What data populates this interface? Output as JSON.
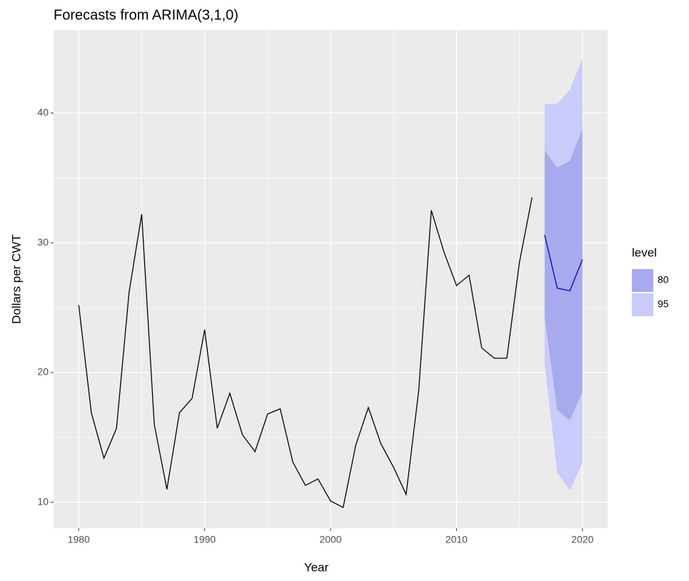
{
  "chart_data": {
    "type": "forecast",
    "title": "Forecasts from ARIMA(3,1,0)",
    "x_label": "Year",
    "y_label": "Dollars per CWT",
    "xlim": [
      1978,
      2022
    ],
    "ylim": [
      8,
      46.4
    ],
    "xticks": [
      1980,
      1990,
      2000,
      2010,
      2020
    ],
    "yticks": [
      10,
      20,
      30,
      40
    ],
    "grid": true,
    "line_color": "#000000",
    "x": [
      1980,
      1981,
      1982,
      1983,
      1984,
      1985,
      1986,
      1987,
      1988,
      1989,
      1990,
      1991,
      1992,
      1993,
      1994,
      1995,
      1996,
      1997,
      1998,
      1999,
      2000,
      2001,
      2002,
      2003,
      2004,
      2005,
      2006,
      2007,
      2008,
      2009,
      2010,
      2011,
      2012,
      2013,
      2014,
      2015,
      2016
    ],
    "values": [
      25.2,
      16.9,
      13.4,
      15.7,
      26.2,
      32.2,
      16.0,
      11.0,
      16.9,
      18.0,
      23.3,
      15.7,
      18.4,
      15.2,
      13.9,
      16.8,
      17.2,
      13.1,
      11.3,
      11.8,
      10.1,
      9.6,
      14.4,
      17.3,
      14.5,
      12.7,
      10.6,
      18.6,
      32.5,
      29.3,
      26.7,
      27.5,
      21.9,
      21.1,
      21.1,
      28.5,
      33.5
    ],
    "forecast": {
      "x": [
        2017,
        2018,
        2019,
        2020
      ],
      "mean": [
        30.6,
        26.5,
        26.3,
        28.7
      ],
      "color": "#0000cc",
      "legend_title": "level",
      "bands": [
        {
          "level": 95,
          "color": "#c9cbfa",
          "lower": [
            20.7,
            12.3,
            10.9,
            13.0
          ],
          "upper": [
            40.7,
            40.7,
            41.8,
            44.2
          ]
        },
        {
          "level": 80,
          "color": "#a8aaee",
          "lower": [
            24.3,
            17.1,
            16.3,
            18.5
          ],
          "upper": [
            37.1,
            35.8,
            36.3,
            38.8
          ]
        }
      ]
    }
  }
}
